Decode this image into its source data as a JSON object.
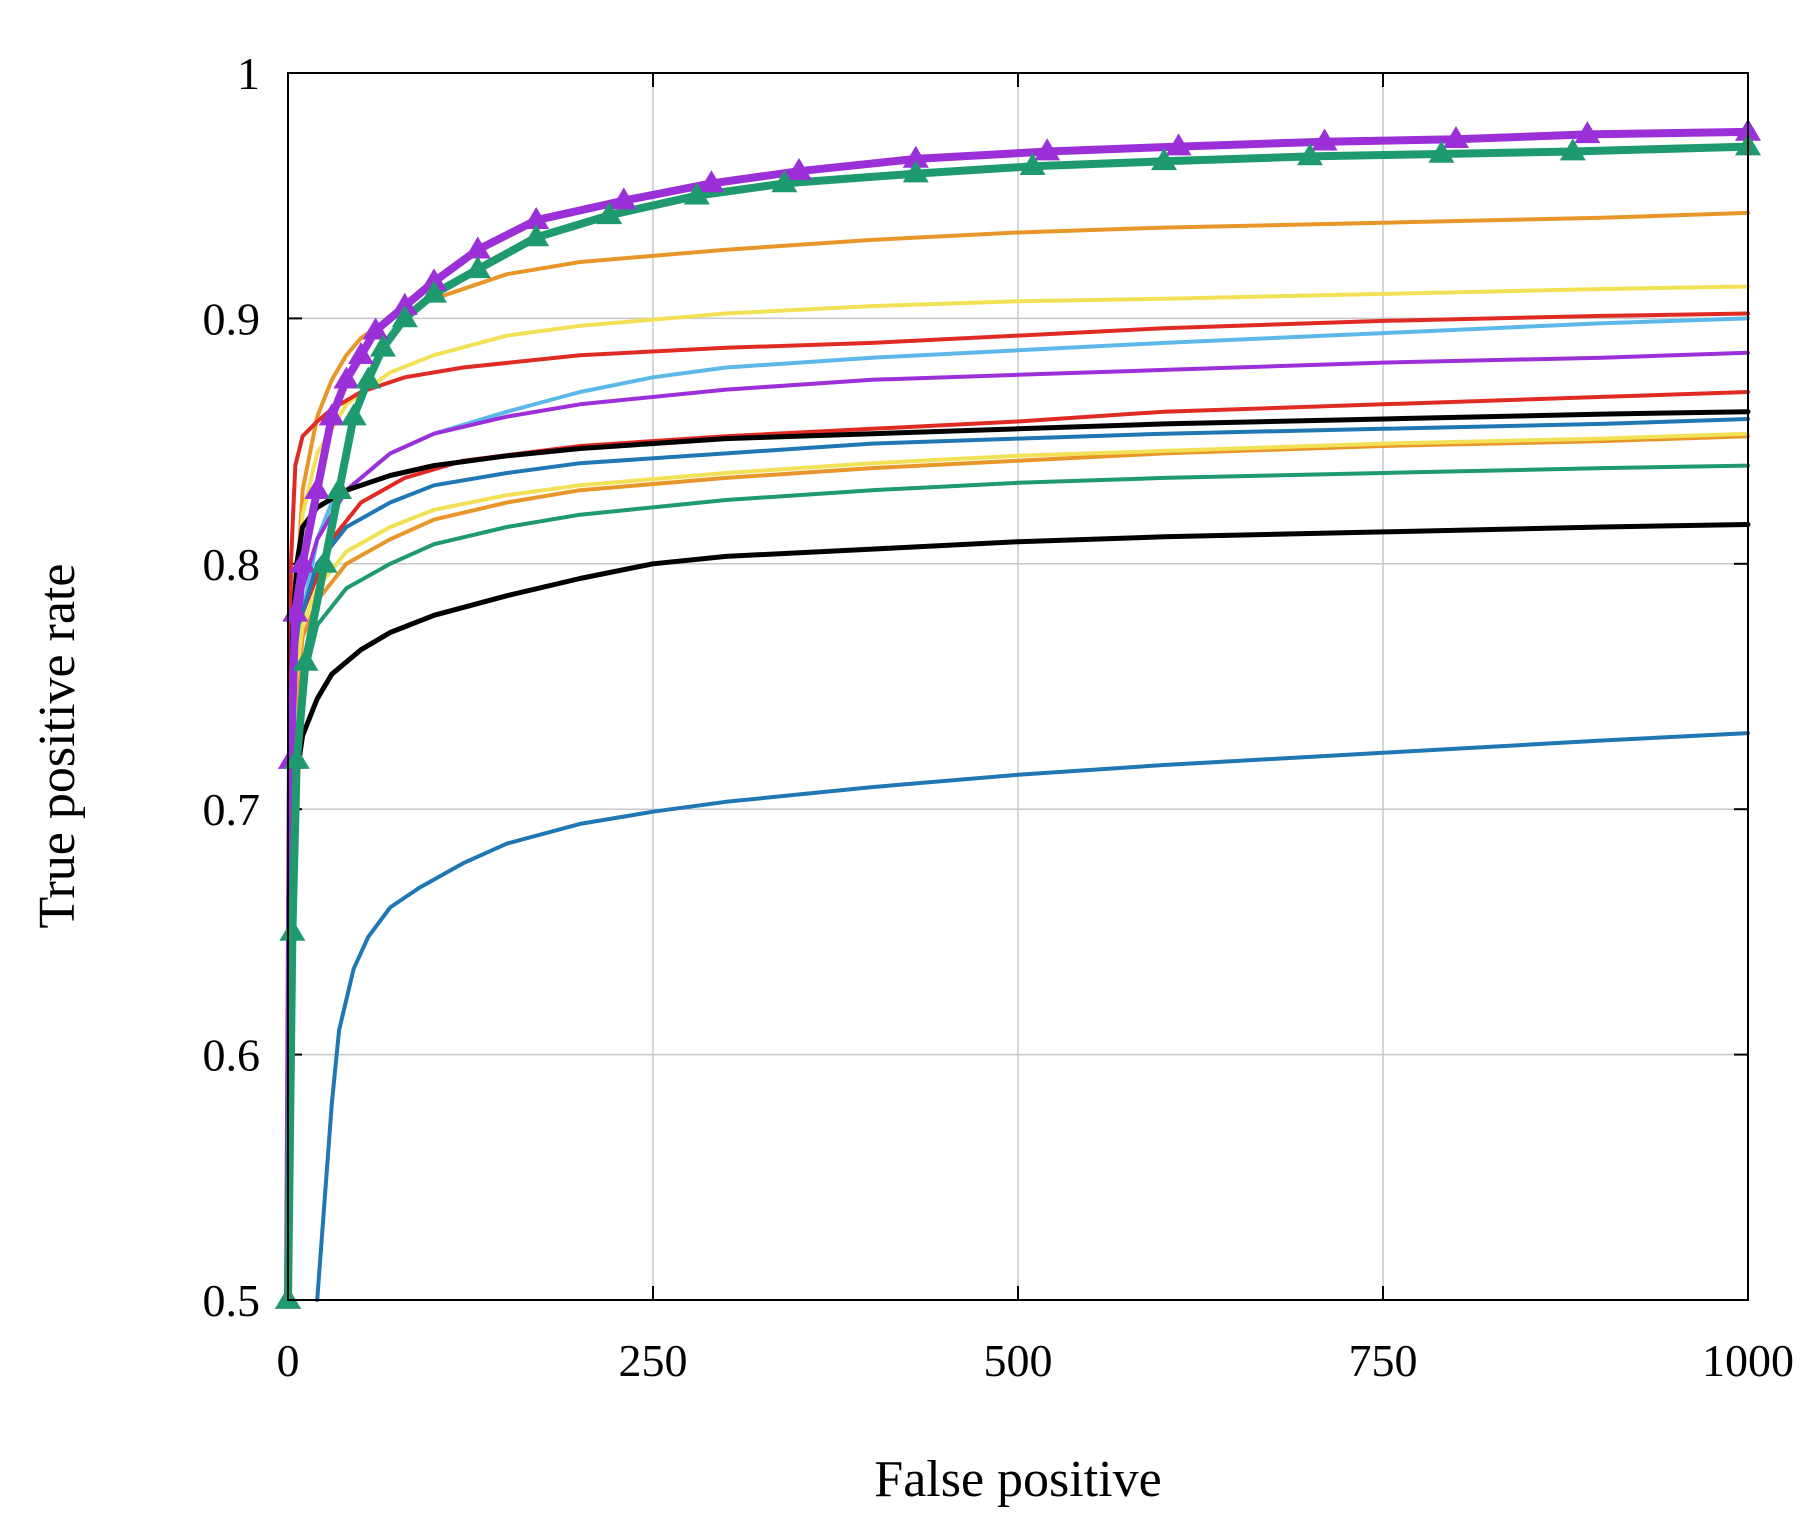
{
  "chart_data": {
    "type": "line",
    "title": "",
    "xlabel": "False positive",
    "ylabel": "True positive rate",
    "xlim": [
      0,
      1000
    ],
    "ylim": [
      0.5,
      1
    ],
    "xticks": [
      0,
      250,
      500,
      750,
      1000
    ],
    "xtick_labels": [
      "0",
      "250",
      "500",
      "750",
      "1000"
    ],
    "yticks": [
      0.5,
      0.6,
      0.7,
      0.8,
      0.9,
      1
    ],
    "ytick_labels": [
      "0.5",
      "0.6",
      "0.7",
      "0.8",
      "0.9",
      "1"
    ],
    "grid": true,
    "legend": "none",
    "series": [
      {
        "color": "#9b30d9",
        "width": 8,
        "marker": "triangle",
        "x": [
          0,
          2,
          5,
          10,
          20,
          30,
          40,
          50,
          60,
          80,
          100,
          130,
          170,
          230,
          290,
          350,
          430,
          520,
          610,
          710,
          800,
          890,
          1000
        ],
        "y": [
          0.5,
          0.72,
          0.78,
          0.8,
          0.83,
          0.86,
          0.875,
          0.885,
          0.895,
          0.905,
          0.915,
          0.928,
          0.94,
          0.948,
          0.955,
          0.96,
          0.965,
          0.968,
          0.97,
          0.972,
          0.973,
          0.975,
          0.976
        ]
      },
      {
        "color": "#1e9a6e",
        "width": 8,
        "marker": "triangle",
        "x": [
          0,
          3,
          6,
          12,
          25,
          35,
          45,
          55,
          65,
          80,
          100,
          130,
          170,
          220,
          280,
          340,
          430,
          510,
          600,
          700,
          790,
          880,
          1000
        ],
        "y": [
          0.5,
          0.65,
          0.72,
          0.76,
          0.8,
          0.83,
          0.86,
          0.875,
          0.888,
          0.9,
          0.91,
          0.92,
          0.933,
          0.942,
          0.95,
          0.955,
          0.959,
          0.962,
          0.964,
          0.966,
          0.967,
          0.968,
          0.97
        ]
      },
      {
        "color": "#e8962a",
        "width": 4,
        "x": [
          0,
          5,
          10,
          20,
          30,
          40,
          50,
          70,
          100,
          150,
          200,
          300,
          400,
          500,
          600,
          750,
          900,
          1000
        ],
        "y": [
          0.5,
          0.78,
          0.83,
          0.86,
          0.875,
          0.885,
          0.892,
          0.9,
          0.908,
          0.918,
          0.923,
          0.928,
          0.932,
          0.935,
          0.937,
          0.939,
          0.941,
          0.943
        ]
      },
      {
        "color": "#f2e155",
        "width": 4,
        "x": [
          0,
          5,
          10,
          20,
          40,
          70,
          100,
          150,
          200,
          300,
          400,
          500,
          600,
          750,
          900,
          1000
        ],
        "y": [
          0.5,
          0.78,
          0.82,
          0.845,
          0.865,
          0.878,
          0.885,
          0.893,
          0.897,
          0.902,
          0.905,
          0.907,
          0.908,
          0.91,
          0.912,
          0.913
        ]
      },
      {
        "color": "#e02a24",
        "width": 4,
        "x": [
          0,
          2,
          5,
          10,
          20,
          30,
          50,
          80,
          120,
          200,
          300,
          400,
          500,
          600,
          750,
          900,
          1000
        ],
        "y": [
          0.5,
          0.8,
          0.84,
          0.852,
          0.858,
          0.863,
          0.87,
          0.876,
          0.88,
          0.885,
          0.888,
          0.89,
          0.893,
          0.896,
          0.899,
          0.901,
          0.902
        ]
      },
      {
        "color": "#5bb8e8",
        "width": 4,
        "x": [
          0,
          5,
          10,
          20,
          30,
          50,
          70,
          100,
          150,
          200,
          250,
          300,
          400,
          500,
          600,
          750,
          900,
          1000
        ],
        "y": [
          0.5,
          0.75,
          0.78,
          0.81,
          0.825,
          0.835,
          0.845,
          0.853,
          0.862,
          0.87,
          0.876,
          0.88,
          0.884,
          0.887,
          0.89,
          0.894,
          0.898,
          0.9
        ]
      },
      {
        "color": "#9b30d9",
        "width": 4,
        "x": [
          0,
          5,
          10,
          20,
          40,
          70,
          100,
          150,
          200,
          300,
          400,
          500,
          600,
          750,
          900,
          1000
        ],
        "y": [
          0.5,
          0.76,
          0.79,
          0.81,
          0.83,
          0.845,
          0.853,
          0.86,
          0.865,
          0.871,
          0.875,
          0.877,
          0.879,
          0.882,
          0.884,
          0.886
        ]
      },
      {
        "color": "#e02a24",
        "width": 4,
        "x": [
          0,
          5,
          10,
          20,
          30,
          50,
          80,
          120,
          200,
          300,
          400,
          500,
          600,
          750,
          900,
          1000
        ],
        "y": [
          0.5,
          0.76,
          0.78,
          0.795,
          0.81,
          0.825,
          0.835,
          0.842,
          0.848,
          0.852,
          0.855,
          0.858,
          0.862,
          0.865,
          0.868,
          0.87
        ]
      },
      {
        "color": "#000000",
        "width": 5,
        "x": [
          0,
          3,
          6,
          10,
          20,
          40,
          70,
          100,
          150,
          200,
          300,
          400,
          500,
          600,
          750,
          900,
          1000
        ],
        "y": [
          0.5,
          0.77,
          0.8,
          0.815,
          0.823,
          0.83,
          0.836,
          0.84,
          0.844,
          0.847,
          0.851,
          0.853,
          0.855,
          0.857,
          0.859,
          0.861,
          0.862
        ]
      },
      {
        "color": "#1f77b4",
        "width": 4,
        "x": [
          0,
          5,
          10,
          20,
          40,
          70,
          100,
          150,
          200,
          300,
          400,
          500,
          600,
          750,
          900,
          1000
        ],
        "y": [
          0.5,
          0.76,
          0.78,
          0.8,
          0.815,
          0.825,
          0.832,
          0.837,
          0.841,
          0.845,
          0.849,
          0.851,
          0.853,
          0.855,
          0.857,
          0.859
        ]
      },
      {
        "color": "#e8962a",
        "width": 4,
        "x": [
          0,
          5,
          10,
          20,
          40,
          70,
          100,
          150,
          200,
          300,
          400,
          500,
          600,
          750,
          900,
          1000
        ],
        "y": [
          0.5,
          0.74,
          0.77,
          0.785,
          0.8,
          0.81,
          0.818,
          0.825,
          0.83,
          0.835,
          0.839,
          0.842,
          0.845,
          0.848,
          0.85,
          0.852
        ]
      },
      {
        "color": "#f2e155",
        "width": 4,
        "x": [
          0,
          5,
          10,
          20,
          40,
          70,
          100,
          150,
          200,
          300,
          400,
          500,
          600,
          750,
          900,
          1000
        ],
        "y": [
          0.5,
          0.75,
          0.775,
          0.79,
          0.805,
          0.815,
          0.822,
          0.828,
          0.832,
          0.837,
          0.841,
          0.844,
          0.846,
          0.849,
          0.851,
          0.853
        ]
      },
      {
        "color": "#1e9a6e",
        "width": 4,
        "x": [
          0,
          5,
          10,
          20,
          40,
          70,
          100,
          150,
          200,
          300,
          400,
          500,
          600,
          750,
          900,
          1000
        ],
        "y": [
          0.5,
          0.72,
          0.75,
          0.775,
          0.79,
          0.8,
          0.808,
          0.815,
          0.82,
          0.826,
          0.83,
          0.833,
          0.835,
          0.837,
          0.839,
          0.84
        ]
      },
      {
        "color": "#000000",
        "width": 5,
        "x": [
          0,
          5,
          10,
          20,
          30,
          50,
          70,
          100,
          150,
          200,
          250,
          300,
          400,
          500,
          600,
          750,
          900,
          1000
        ],
        "y": [
          0.5,
          0.71,
          0.73,
          0.745,
          0.755,
          0.765,
          0.772,
          0.779,
          0.787,
          0.794,
          0.8,
          0.803,
          0.806,
          0.809,
          0.811,
          0.813,
          0.815,
          0.816
        ]
      },
      {
        "color": "#1f77b4",
        "width": 4,
        "x": [
          20,
          25,
          30,
          35,
          45,
          55,
          70,
          90,
          120,
          150,
          200,
          250,
          300,
          400,
          500,
          600,
          750,
          900,
          1000
        ],
        "y": [
          0.5,
          0.54,
          0.58,
          0.61,
          0.635,
          0.648,
          0.66,
          0.668,
          0.678,
          0.686,
          0.694,
          0.699,
          0.703,
          0.709,
          0.714,
          0.718,
          0.723,
          0.728,
          0.731
        ]
      }
    ]
  }
}
